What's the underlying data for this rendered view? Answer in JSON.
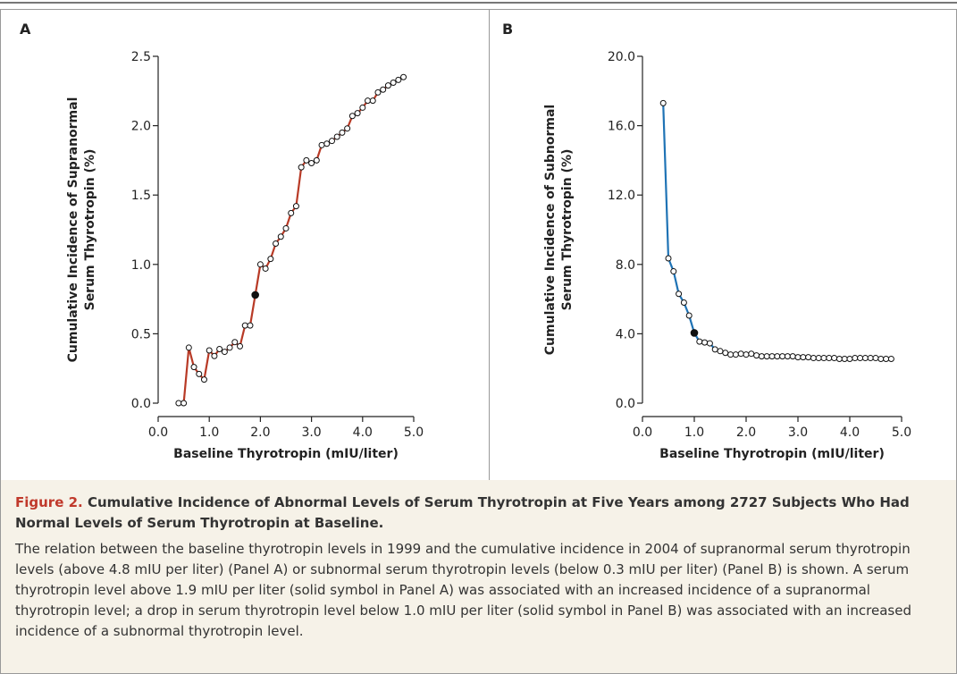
{
  "chart_data": [
    {
      "type": "line",
      "panel": "A",
      "ylabel": [
        "Cumulative Incidence of Supranormal",
        "Serum Thyrotropin (%)"
      ],
      "xlabel": "Baseline Thyrotropin (mIU/liter)",
      "x": [
        0.4,
        0.5,
        0.6,
        0.7,
        0.8,
        0.9,
        1.0,
        1.1,
        1.2,
        1.3,
        1.4,
        1.5,
        1.6,
        1.7,
        1.8,
        1.9,
        2.0,
        2.1,
        2.2,
        2.3,
        2.4,
        2.5,
        2.6,
        2.7,
        2.8,
        2.9,
        3.0,
        3.1,
        3.2,
        3.3,
        3.4,
        3.5,
        3.6,
        3.7,
        3.8,
        3.9,
        4.0,
        4.1,
        4.2,
        4.3,
        4.4,
        4.5,
        4.6,
        4.7,
        4.8
      ],
      "values": [
        0,
        0,
        0.4,
        0.26,
        0.21,
        0.17,
        0.38,
        0.34,
        0.39,
        0.37,
        0.4,
        0.44,
        0.41,
        0.56,
        0.56,
        0.78,
        1.0,
        0.97,
        1.04,
        1.15,
        1.2,
        1.26,
        1.37,
        1.42,
        1.7,
        1.75,
        1.73,
        1.75,
        1.86,
        1.87,
        1.89,
        1.92,
        1.95,
        1.98,
        2.07,
        2.09,
        2.13,
        2.18,
        2.18,
        2.24,
        2.26,
        2.29,
        2.31,
        2.33,
        2.35
      ],
      "color": "#b83a26",
      "highlight_point": 15,
      "xlim": [
        0,
        5
      ],
      "xticks": [
        {
          "value": 0,
          "label": "0.0"
        },
        {
          "value": 1,
          "label": "1.0"
        },
        {
          "value": 2,
          "label": "2.0"
        },
        {
          "value": 3,
          "label": "3.0"
        },
        {
          "value": 4,
          "label": "4.0"
        },
        {
          "value": 5,
          "label": "5.0"
        }
      ],
      "ylim": [
        0,
        2.5
      ],
      "yticks": [
        {
          "value": 0,
          "label": "0.0"
        },
        0.5,
        {
          "value": 1,
          "label": "1.0"
        },
        1.5,
        {
          "value": 2,
          "label": "2.0"
        },
        2.5
      ]
    },
    {
      "type": "line",
      "panel": "B",
      "ylabel": [
        "Cumulative Incidence of Subnormal",
        "Serum Thyrotropin (%)"
      ],
      "xlabel": "Baseline Thyrotropin (mIU/liter)",
      "x": [
        0.4,
        0.5,
        0.6,
        0.7,
        0.8,
        0.9,
        1.0,
        1.1,
        1.2,
        1.3,
        1.4,
        1.5,
        1.6,
        1.7,
        1.8,
        1.9,
        2.0,
        2.1,
        2.2,
        2.3,
        2.4,
        2.5,
        2.6,
        2.7,
        2.8,
        2.9,
        3.0,
        3.1,
        3.2,
        3.3,
        3.4,
        3.5,
        3.6,
        3.7,
        3.8,
        3.9,
        4.0,
        4.1,
        4.2,
        4.3,
        4.4,
        4.5,
        4.6,
        4.7,
        4.8
      ],
      "values": [
        17.3,
        8.35,
        7.6,
        6.3,
        5.8,
        5.05,
        4.05,
        3.55,
        3.5,
        3.45,
        3.1,
        3.0,
        2.9,
        2.8,
        2.8,
        2.85,
        2.8,
        2.85,
        2.75,
        2.7,
        2.7,
        2.7,
        2.7,
        2.7,
        2.7,
        2.7,
        2.65,
        2.65,
        2.65,
        2.6,
        2.6,
        2.6,
        2.6,
        2.6,
        2.55,
        2.55,
        2.55,
        2.6,
        2.6,
        2.6,
        2.6,
        2.6,
        2.55,
        2.55,
        2.55
      ],
      "color": "#1f73b5",
      "highlight_point": 6,
      "xlim": [
        0,
        5
      ],
      "xticks": [
        {
          "value": 0,
          "label": "0.0"
        },
        {
          "value": 1,
          "label": "1.0"
        },
        {
          "value": 2,
          "label": "2.0"
        },
        {
          "value": 3,
          "label": "3.0"
        },
        {
          "value": 4,
          "label": "4.0"
        },
        {
          "value": 5,
          "label": "5.0"
        }
      ],
      "ylim": [
        0,
        20
      ],
      "yticks": [
        {
          "value": 0,
          "label": "0.0"
        },
        {
          "value": 4,
          "label": "4.0"
        },
        {
          "value": 8,
          "label": "8.0"
        },
        {
          "value": 12,
          "label": "12.0"
        },
        {
          "value": 16,
          "label": "16.0"
        },
        {
          "value": 20,
          "label": "20.0"
        }
      ]
    }
  ],
  "caption": {
    "label": "Figure 2.",
    "title": "Cumulative Incidence of Abnormal Levels of Serum Thyrotropin at Five Years among 2727 Subjects Who Had Normal Levels of Serum Thyrotropin at Baseline.",
    "text": "The relation between the baseline thyrotropin levels in 1999 and the cumulative incidence in 2004 of supranormal serum thyrotropin levels (above 4.8 mIU per liter) (Panel A) or subnormal serum thyrotropin levels (below 0.3 mIU per liter) (Panel B) is shown. A serum thyrotropin level above 1.9 mIU per liter (solid symbol in Panel A) was associated with an increased incidence of a supranormal thyrotropin level; a drop in serum thyrotropin level below 1.0 mIU per liter (solid symbol in Panel B) was associated with an increased incidence of a subnormal thyrotropin level."
  }
}
